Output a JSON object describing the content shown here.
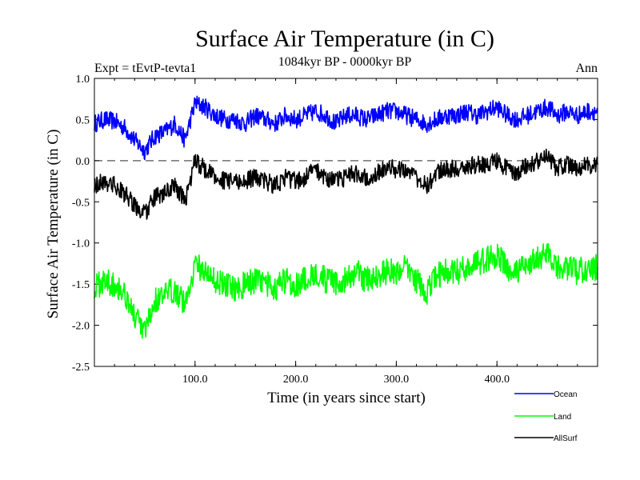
{
  "chart_data": {
    "type": "line",
    "title": "Surface Air Temperature (in C)",
    "subtitle_left": "Expt = tEvtP-tevta1",
    "subtitle_center": "1084kyr BP - 0000kyr BP",
    "subtitle_right": "Ann",
    "xlabel": "Time (in years since start)",
    "ylabel": "Surface Air Temperature (in C)",
    "xlim": [
      0,
      500
    ],
    "ylim": [
      -2.5,
      1.0
    ],
    "xticks": [
      {
        "value": 100,
        "label": "100.0"
      },
      {
        "value": 200,
        "label": "200.0"
      },
      {
        "value": 300,
        "label": "300.0"
      },
      {
        "value": 400,
        "label": "400.0"
      }
    ],
    "yticks": [
      {
        "value": 1.0,
        "label": "1.0"
      },
      {
        "value": 0.5,
        "label": "0.5"
      },
      {
        "value": 0.0,
        "label": "0.0"
      },
      {
        "value": -0.5,
        "label": "-0.5"
      },
      {
        "value": -1.0,
        "label": "-1.0"
      },
      {
        "value": -1.5,
        "label": "-1.5"
      },
      {
        "value": -2.0,
        "label": "-2.0"
      },
      {
        "value": -2.5,
        "label": "-2.5"
      }
    ],
    "reference_line": {
      "y": 0.0,
      "style": "dashed"
    },
    "series": [
      {
        "name": "Ocean",
        "color": "#0000ff",
        "x": [
          0,
          10,
          20,
          30,
          40,
          50,
          60,
          70,
          80,
          90,
          100,
          110,
          120,
          130,
          140,
          150,
          160,
          170,
          180,
          190,
          200,
          210,
          220,
          230,
          240,
          250,
          260,
          270,
          280,
          290,
          300,
          310,
          320,
          330,
          340,
          350,
          360,
          370,
          380,
          390,
          400,
          410,
          420,
          430,
          440,
          450,
          460,
          470,
          480,
          490,
          500
        ],
        "y": [
          0.45,
          0.5,
          0.48,
          0.4,
          0.25,
          0.12,
          0.3,
          0.35,
          0.45,
          0.25,
          0.7,
          0.65,
          0.55,
          0.5,
          0.5,
          0.45,
          0.55,
          0.5,
          0.45,
          0.55,
          0.5,
          0.55,
          0.6,
          0.55,
          0.45,
          0.55,
          0.55,
          0.5,
          0.55,
          0.6,
          0.6,
          0.55,
          0.5,
          0.45,
          0.5,
          0.55,
          0.55,
          0.6,
          0.55,
          0.6,
          0.65,
          0.55,
          0.5,
          0.55,
          0.6,
          0.65,
          0.55,
          0.6,
          0.55,
          0.6,
          0.6
        ]
      },
      {
        "name": "Land",
        "color": "#00ff00",
        "x": [
          0,
          10,
          20,
          30,
          40,
          50,
          60,
          70,
          80,
          90,
          100,
          110,
          120,
          130,
          140,
          150,
          160,
          170,
          180,
          190,
          200,
          210,
          220,
          230,
          240,
          250,
          260,
          270,
          280,
          290,
          300,
          310,
          320,
          330,
          340,
          350,
          360,
          370,
          380,
          390,
          400,
          410,
          420,
          430,
          440,
          450,
          460,
          470,
          480,
          490,
          500
        ],
        "y": [
          -1.55,
          -1.45,
          -1.5,
          -1.6,
          -1.9,
          -2.1,
          -1.7,
          -1.65,
          -1.55,
          -1.75,
          -1.25,
          -1.35,
          -1.45,
          -1.5,
          -1.55,
          -1.5,
          -1.45,
          -1.5,
          -1.55,
          -1.45,
          -1.5,
          -1.45,
          -1.35,
          -1.45,
          -1.5,
          -1.45,
          -1.35,
          -1.45,
          -1.4,
          -1.35,
          -1.35,
          -1.3,
          -1.45,
          -1.6,
          -1.4,
          -1.35,
          -1.35,
          -1.3,
          -1.25,
          -1.2,
          -1.15,
          -1.3,
          -1.35,
          -1.25,
          -1.2,
          -1.15,
          -1.3,
          -1.3,
          -1.35,
          -1.3,
          -1.3
        ]
      },
      {
        "name": "AllSurf",
        "color": "#000000",
        "x": [
          0,
          10,
          20,
          30,
          40,
          50,
          60,
          70,
          80,
          90,
          100,
          110,
          120,
          130,
          140,
          150,
          160,
          170,
          180,
          190,
          200,
          210,
          220,
          230,
          240,
          250,
          260,
          270,
          280,
          290,
          300,
          310,
          320,
          330,
          340,
          350,
          360,
          370,
          380,
          390,
          400,
          410,
          420,
          430,
          440,
          450,
          460,
          470,
          480,
          490,
          500
        ],
        "y": [
          -0.3,
          -0.25,
          -0.3,
          -0.4,
          -0.55,
          -0.65,
          -0.45,
          -0.4,
          -0.3,
          -0.5,
          0.0,
          -0.1,
          -0.2,
          -0.25,
          -0.25,
          -0.25,
          -0.2,
          -0.25,
          -0.3,
          -0.2,
          -0.25,
          -0.2,
          -0.1,
          -0.2,
          -0.25,
          -0.2,
          -0.15,
          -0.2,
          -0.15,
          -0.1,
          -0.1,
          -0.1,
          -0.2,
          -0.3,
          -0.15,
          -0.1,
          -0.1,
          -0.05,
          -0.05,
          -0.05,
          0.0,
          -0.1,
          -0.15,
          -0.05,
          0.0,
          0.05,
          -0.1,
          -0.05,
          -0.1,
          -0.05,
          -0.05
        ]
      }
    ],
    "legend": {
      "placement": "bottom-right",
      "entries": [
        "Ocean",
        "Land",
        "AllSurf"
      ]
    }
  }
}
